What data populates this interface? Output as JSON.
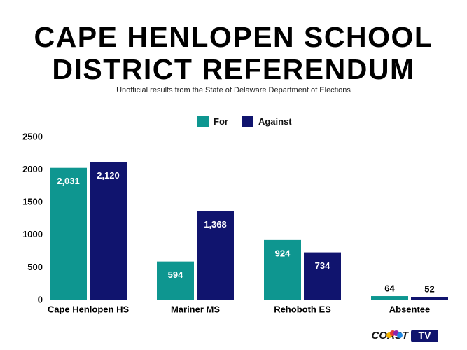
{
  "chart_data": {
    "type": "bar",
    "title": "CAPE HENLOPEN SCHOOL DISTRICT REFERENDUM",
    "subtitle": "Unofficial results from the State of Delaware Department of Elections",
    "categories": [
      "Cape Henlopen HS",
      "Mariner MS",
      "Rehoboth ES",
      "Absentee"
    ],
    "series": [
      {
        "name": "For",
        "color": "#0e9690",
        "values": [
          2031,
          594,
          924,
          64
        ],
        "value_labels": [
          "2,031",
          "594",
          "924",
          "64"
        ]
      },
      {
        "name": "Against",
        "color": "#10146e",
        "values": [
          2120,
          1368,
          734,
          52
        ],
        "value_labels": [
          "2,120",
          "1,368",
          "734",
          "52"
        ]
      }
    ],
    "ylim": [
      0,
      2500
    ],
    "yticks": [
      0,
      500,
      1000,
      1500,
      2000,
      2500
    ],
    "grid": false,
    "legend": "top"
  },
  "branding": {
    "logo_text": "COAST",
    "logo_badge": "TV"
  }
}
